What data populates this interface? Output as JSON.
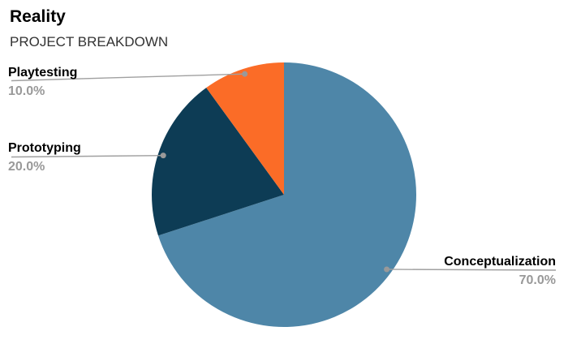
{
  "chart_data": {
    "type": "pie",
    "title": "Reality",
    "subtitle": "PROJECT BREAKDOWN",
    "start_angle_deg": 0,
    "direction": "clockwise",
    "legend_position": "none",
    "label_style": "outside-with-leader-lines",
    "slices": [
      {
        "label": "Conceptualization",
        "value": 70.0,
        "pct_label": "70.0%",
        "color": "#4E86A8"
      },
      {
        "label": "Prototyping",
        "value": 20.0,
        "pct_label": "20.0%",
        "color": "#0D3C55"
      },
      {
        "label": "Playtesting",
        "value": 10.0,
        "pct_label": "10.0%",
        "color": "#FB6C27"
      }
    ],
    "colors": {
      "title_text": "#000000",
      "subtitle_text": "#333333",
      "label_text": "#000000",
      "pct_text": "#999999",
      "leader_line": "#a0a0a0",
      "leader_dot": "#999999",
      "background": "#ffffff"
    }
  }
}
